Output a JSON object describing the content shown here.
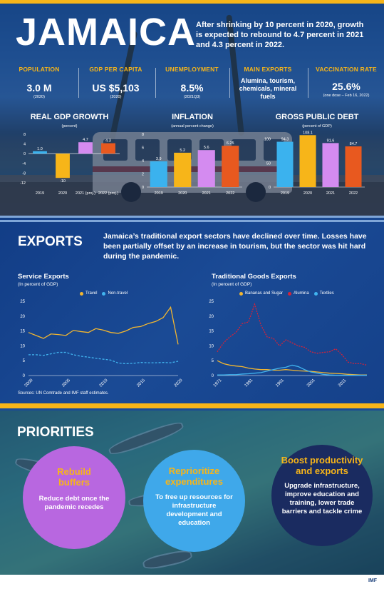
{
  "header": {
    "title": "JAMAICA",
    "intro": "After shrinking by 10 percent in 2020, growth is expected to rebound to 4.7 percent in 2021 and 4.3 percent in 2022."
  },
  "stats": [
    {
      "label": "POPULATION",
      "value": "3.0 M",
      "note": "(2020)"
    },
    {
      "label": "GDP PER CAPITA",
      "value": "US $5,103",
      "note": "(2020)"
    },
    {
      "label": "UNEMPLOYMENT",
      "value": "8.5%",
      "note": "(2021Q3)"
    },
    {
      "label": "MAIN EXPORTS",
      "value": "Alumina, tourism, chemicals, mineral fuels",
      "note": ""
    },
    {
      "label": "VACCINATION RATE",
      "value": "25.6%",
      "note": "(one dose – Feb 16, 2022)"
    }
  ],
  "colors": {
    "blue_bar": "#3bb2ee",
    "yellow_bar": "#f7b519",
    "purple_bar": "#d48bf0",
    "orange_bar": "#e8591f",
    "travel": "#f2b630",
    "nontravel": "#41b4ef",
    "bananas": "#f2b630",
    "alumina": "#d3233a",
    "textiles": "#41b4ef",
    "circle1": "#b867e0",
    "circle2": "#3fa8ea",
    "circle3": "#1a2b60",
    "accent": "#f7b519"
  },
  "chart_data": [
    {
      "type": "bar",
      "title": "REAL GDP GROWTH",
      "subtitle": "(percent)",
      "categories": [
        "2019",
        "2020",
        "2021 (proj.)",
        "2022 (proj.)"
      ],
      "values": [
        1.0,
        -10,
        4.7,
        4.3
      ],
      "value_labels": [
        "1.0",
        "-10",
        "4.7",
        "4.3"
      ],
      "yticks": [
        "8",
        "4",
        "0",
        "-4",
        "-8",
        "-12"
      ],
      "ylim": [
        -12,
        8
      ]
    },
    {
      "type": "bar",
      "title": "INFLATION",
      "subtitle": "(annual percent change)",
      "categories": [
        "2019",
        "2020",
        "2021",
        "2022"
      ],
      "values": [
        3.9,
        5.2,
        5.6,
        6.25
      ],
      "value_labels": [
        "3.9",
        "5.2",
        "5.6",
        "6.25"
      ],
      "yticks": [
        "8",
        "6",
        "4",
        "2",
        "0"
      ],
      "ylim": [
        0,
        8
      ]
    },
    {
      "type": "bar",
      "title": "GROSS PUBLIC DEBT",
      "subtitle": "(percent of GDP)",
      "categories": [
        "2019",
        "2020",
        "2021",
        "2022"
      ],
      "values": [
        94.3,
        108.1,
        91.6,
        84.7
      ],
      "value_labels": [
        "94.3",
        "108.1",
        "91.6",
        "84.7"
      ],
      "yticks": [
        "100",
        "50",
        "0"
      ],
      "ylim": [
        0,
        110
      ]
    },
    {
      "type": "line",
      "title": "Service Exports",
      "subtitle": "(In percent of GDP)",
      "x": [
        2000,
        2001,
        2002,
        2003,
        2004,
        2005,
        2006,
        2007,
        2008,
        2009,
        2010,
        2011,
        2012,
        2013,
        2014,
        2015,
        2016,
        2017,
        2018,
        2019,
        2020
      ],
      "xticks": [
        "2000",
        "2005",
        "2010",
        "2015",
        "2020"
      ],
      "yticks": [
        "25",
        "20",
        "15",
        "10",
        "5",
        "0"
      ],
      "ylim": [
        0,
        25
      ],
      "series": [
        {
          "name": "Travel",
          "values": [
            14.5,
            13.5,
            12.5,
            14,
            13.8,
            13.5,
            15.2,
            14.8,
            14.5,
            15.8,
            15.3,
            14.5,
            14.2,
            15,
            16.2,
            16.5,
            17.5,
            18.2,
            19.5,
            23,
            10.5
          ]
        },
        {
          "name": "Non-travel",
          "values": [
            7,
            7,
            6.8,
            7.3,
            7.8,
            7.8,
            7,
            6.5,
            6.2,
            5.8,
            5.5,
            5.2,
            4.2,
            4,
            4.1,
            4.4,
            4.3,
            4.3,
            4.4,
            4.3,
            4.8
          ]
        }
      ]
    },
    {
      "type": "line",
      "title": "Traditional Goods Exports",
      "subtitle": "(In percent of GDP)",
      "x": [
        1971,
        1973,
        1975,
        1977,
        1979,
        1981,
        1983,
        1985,
        1987,
        1989,
        1991,
        1993,
        1995,
        1997,
        1999,
        2001,
        2003,
        2005,
        2007,
        2009,
        2011,
        2013,
        2015,
        2017,
        2019
      ],
      "xticks": [
        "1971",
        "1981",
        "1991",
        "2001",
        "2011"
      ],
      "yticks": [
        "25",
        "20",
        "15",
        "10",
        "5",
        "0"
      ],
      "ylim": [
        0,
        25
      ],
      "series": [
        {
          "name": "Bananas and Sugar",
          "values": [
            5,
            4,
            3.5,
            3.2,
            3,
            2.5,
            2.2,
            2,
            2,
            1.8,
            1.8,
            2,
            1.8,
            1.6,
            1.5,
            1.4,
            1.2,
            1,
            0.8,
            0.7,
            0.6,
            0.4,
            0.3,
            0.2,
            0.2
          ]
        },
        {
          "name": "Alumina",
          "values": [
            8,
            11,
            13,
            14.5,
            17.5,
            18,
            24,
            17,
            13,
            12.5,
            10,
            12,
            11,
            10,
            9.5,
            8,
            7.5,
            7.8,
            8,
            9,
            7,
            4.5,
            4,
            4,
            3.5
          ]
        },
        {
          "name": "Textiles",
          "values": [
            0.2,
            0.2,
            0.3,
            0.3,
            0.5,
            0.6,
            0.8,
            1,
            1.5,
            2,
            2.5,
            2.8,
            3.5,
            3,
            2,
            1.2,
            0.8,
            0.4,
            0.2,
            0.1,
            0.1,
            0.1,
            0.1,
            0.1,
            0.1
          ]
        }
      ]
    }
  ],
  "exports": {
    "title": "EXPORTS",
    "text": "Jamaica’s traditional export sectors have declined over time. Losses have been partially offset by an increase in tourism, but the sector was hit hard during the pandemic.",
    "sources": "Sources: UN Comtrade and IMF staff estimates."
  },
  "priorities": {
    "title": "PRIORITIES",
    "items": [
      {
        "title": "Rebuild buffers",
        "desc": "Reduce debt once the pandemic recedes"
      },
      {
        "title": "Reprioritize expenditures",
        "desc": "To free up resources for infrastructure development and education"
      },
      {
        "title": "Boost productivity and exports",
        "desc": "Upgrade infrastructure, improve education and training, lower trade barriers and tackle crime"
      }
    ]
  },
  "footer": {
    "logo": "IMF"
  }
}
